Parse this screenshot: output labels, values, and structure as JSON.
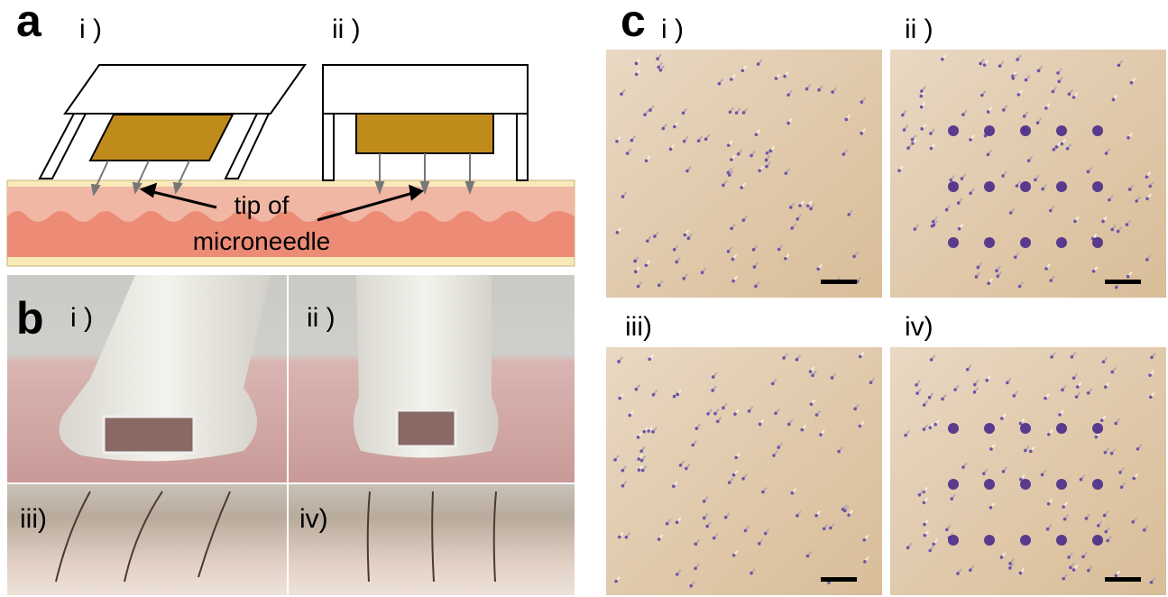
{
  "panel_a": {
    "label": "a",
    "sublabels": [
      "i )",
      "ii )"
    ],
    "annotation": [
      "tip of",
      "microneedle"
    ]
  },
  "panel_b": {
    "label": "b",
    "sublabels": [
      "i )",
      "ii )",
      "iii)",
      "iv)"
    ]
  },
  "panel_c": {
    "label": "c",
    "sublabels": [
      "i )",
      "ii )",
      "iii)",
      "iv)"
    ]
  }
}
